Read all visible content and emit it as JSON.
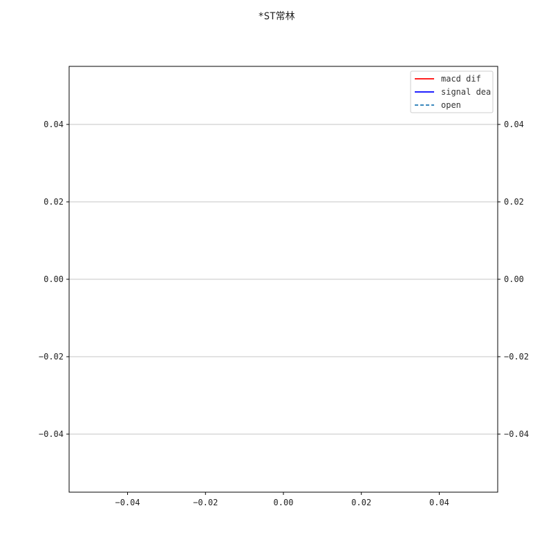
{
  "chart_data": {
    "type": "line",
    "title": "*ST常林",
    "xlabel": "",
    "ylabel": "",
    "xlim": [
      -0.055,
      0.055
    ],
    "ylim": [
      -0.055,
      0.055
    ],
    "x_ticks": [
      -0.04,
      -0.02,
      0.0,
      0.02,
      0.04
    ],
    "x_tick_labels": [
      "−0.04",
      "−0.02",
      "0.00",
      "0.02",
      "0.04"
    ],
    "y_ticks": [
      0.04,
      0.02,
      0.0,
      -0.02,
      -0.04
    ],
    "y_tick_labels": [
      "0.04",
      "0.02",
      "0.00",
      "−0.02",
      "−0.04"
    ],
    "grid": "horizontal",
    "legend_placement": "top-right",
    "secondary_y_axis": true,
    "series": [
      {
        "name": "macd dif",
        "color": "#ff0000",
        "style": "solid",
        "x": [],
        "y": []
      },
      {
        "name": "signal dea",
        "color": "#0000ff",
        "style": "solid",
        "x": [],
        "y": []
      },
      {
        "name": "open",
        "color": "#1f77b4",
        "style": "dashed",
        "x": [],
        "y": []
      }
    ]
  }
}
